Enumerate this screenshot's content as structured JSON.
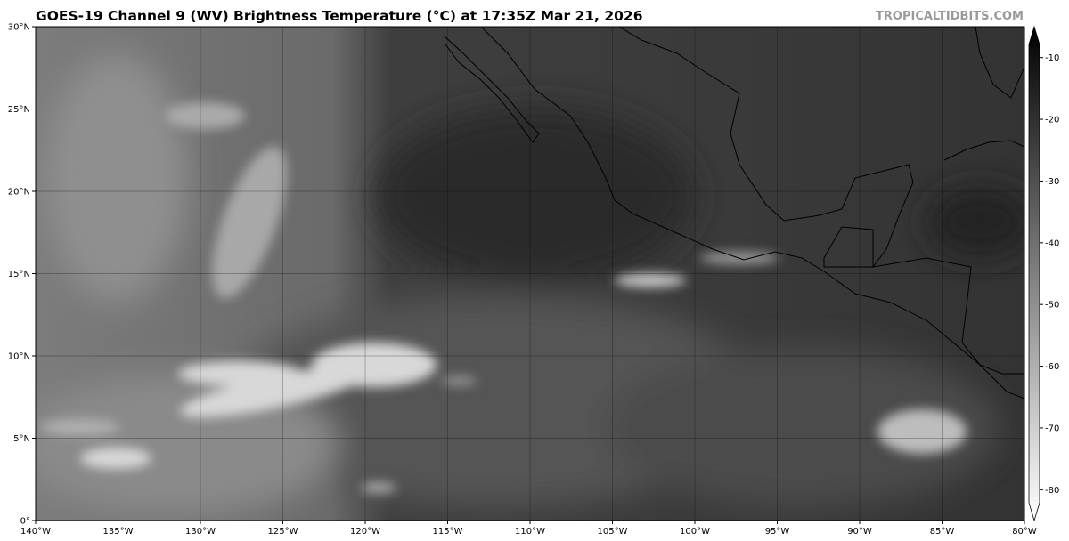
{
  "title": "GOES-19 Channel 9 (WV) Brightness Temperature (°C) at 17:35Z Mar 21, 2026",
  "credit": "TROPICALTIDBITS.COM",
  "map": {
    "lon_range": [
      -140,
      -80
    ],
    "lat_range": [
      0,
      30
    ],
    "lon_ticks": [
      "140°W",
      "135°W",
      "130°W",
      "125°W",
      "120°W",
      "115°W",
      "110°W",
      "105°W",
      "100°W",
      "95°W",
      "90°W",
      "85°W",
      "80°W"
    ],
    "lat_ticks": [
      "0°",
      "5°N",
      "10°N",
      "15°N",
      "20°N",
      "25°N",
      "30°N"
    ],
    "gridlines": true
  },
  "colorbar": {
    "range": [
      -85,
      -5
    ],
    "ticks": [
      "-10",
      "-20",
      "-30",
      "-40",
      "-50",
      "-60",
      "-70",
      "-80"
    ],
    "colors": {
      "warm": "#000000",
      "cold": "#ffffff"
    },
    "extend": "both"
  }
}
